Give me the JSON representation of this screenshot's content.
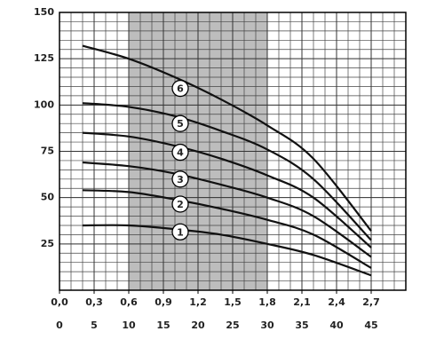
{
  "chart_data": {
    "type": "line",
    "x": [
      0.2,
      0.6,
      1.0,
      1.4,
      1.8,
      2.2,
      2.7
    ],
    "series": [
      {
        "name": "1",
        "color": "#111111",
        "values": [
          35,
          35,
          33,
          30,
          25,
          19,
          8
        ]
      },
      {
        "name": "2",
        "color": "#111111",
        "values": [
          54,
          53,
          49,
          44,
          38,
          30,
          12
        ]
      },
      {
        "name": "3",
        "color": "#111111",
        "values": [
          69,
          67,
          63,
          57,
          50,
          40,
          18
        ]
      },
      {
        "name": "4",
        "color": "#111111",
        "values": [
          85,
          83,
          78,
          71,
          62,
          50,
          23
        ]
      },
      {
        "name": "5",
        "color": "#111111",
        "values": [
          101,
          99,
          94,
          86,
          76,
          60,
          27
        ]
      },
      {
        "name": "6",
        "color": "#111111",
        "values": [
          132,
          125,
          115,
          103,
          89,
          71,
          32
        ]
      }
    ],
    "xlim": [
      0,
      3.0
    ],
    "xticks": [
      {
        "value": 0,
        "label": "0,0"
      },
      {
        "value": 0.3,
        "label": "0,3"
      },
      {
        "value": 0.6,
        "label": "0,6"
      },
      {
        "value": 0.9,
        "label": "0,9"
      },
      {
        "value": 1.2,
        "label": "1,2"
      },
      {
        "value": 1.5,
        "label": "1,5"
      },
      {
        "value": 1.8,
        "label": "1,8"
      },
      {
        "value": 2.1,
        "label": "2,1"
      },
      {
        "value": 2.4,
        "label": "2,4"
      },
      {
        "value": 2.7,
        "label": "2,7"
      }
    ],
    "x2lim": [
      0,
      50
    ],
    "x2ticks": [
      0,
      5,
      10,
      15,
      20,
      25,
      30,
      35,
      40,
      45
    ],
    "ylim": [
      0,
      150
    ],
    "yticks": [
      25,
      50,
      75,
      100,
      125,
      150
    ],
    "shade": [
      0.6,
      1.8
    ],
    "shade_color": "#bdbdbd",
    "grid": true
  }
}
